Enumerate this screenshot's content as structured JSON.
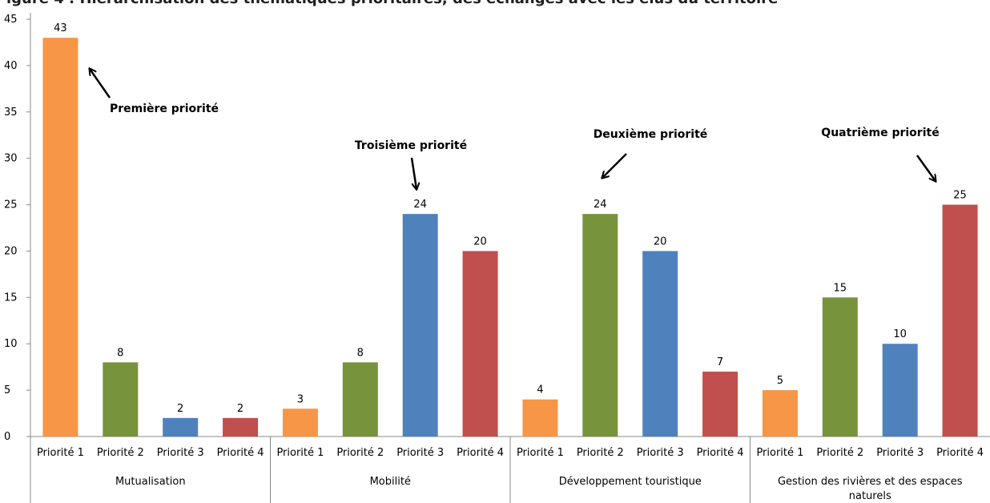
{
  "chart_data": {
    "type": "bar",
    "title": "",
    "cut_title": "igure 4 : Hiérarchisation des thématiques prioritaires, des échanges avec les élus du territoire",
    "xlabel": "",
    "ylabel": "",
    "ylim": [
      0,
      45
    ],
    "yticks": [
      0,
      5,
      10,
      15,
      20,
      25,
      30,
      35,
      40,
      45
    ],
    "grid": false,
    "legend": "none",
    "colors": {
      "Priorité 1": "#f79646",
      "Priorité 2": "#77933c",
      "Priorité 3": "#4f81bd",
      "Priorité 4": "#c0504d"
    },
    "groups": [
      {
        "label": "Mutualisation",
        "bars": [
          {
            "label": "Priorité 1",
            "value": 43
          },
          {
            "label": "Priorité 2",
            "value": 8
          },
          {
            "label": "Priorité 3",
            "value": 2
          },
          {
            "label": "Priorité 4",
            "value": 2
          }
        ]
      },
      {
        "label": "Mobilité",
        "bars": [
          {
            "label": "Priorité 1",
            "value": 3
          },
          {
            "label": "Priorité 2",
            "value": 8
          },
          {
            "label": "Priorité 3",
            "value": 24
          },
          {
            "label": "Priorité 4",
            "value": 20
          }
        ]
      },
      {
        "label": "Développement touristique",
        "bars": [
          {
            "label": "Priorité 1",
            "value": 4
          },
          {
            "label": "Priorité 2",
            "value": 24
          },
          {
            "label": "Priorité 3",
            "value": 20
          },
          {
            "label": "Priorité 4",
            "value": 7
          }
        ]
      },
      {
        "label": "Gestion des rivières et des espaces naturels",
        "label_lines": [
          "Gestion des rivières et des espaces",
          "naturels"
        ],
        "bars": [
          {
            "label": "Priorité 1",
            "value": 5
          },
          {
            "label": "Priorité 2",
            "value": 15
          },
          {
            "label": "Priorité 3",
            "value": 10
          },
          {
            "label": "Priorité 4",
            "value": 25
          }
        ]
      }
    ],
    "annotations": [
      {
        "text": "Première priorité",
        "group": 0,
        "bar": 0
      },
      {
        "text": "Troisième priorité",
        "group": 1,
        "bar": 2
      },
      {
        "text": "Deuxième priorité",
        "group": 2,
        "bar": 1
      },
      {
        "text": "Quatrième priorité",
        "group": 3,
        "bar": 3
      }
    ]
  }
}
